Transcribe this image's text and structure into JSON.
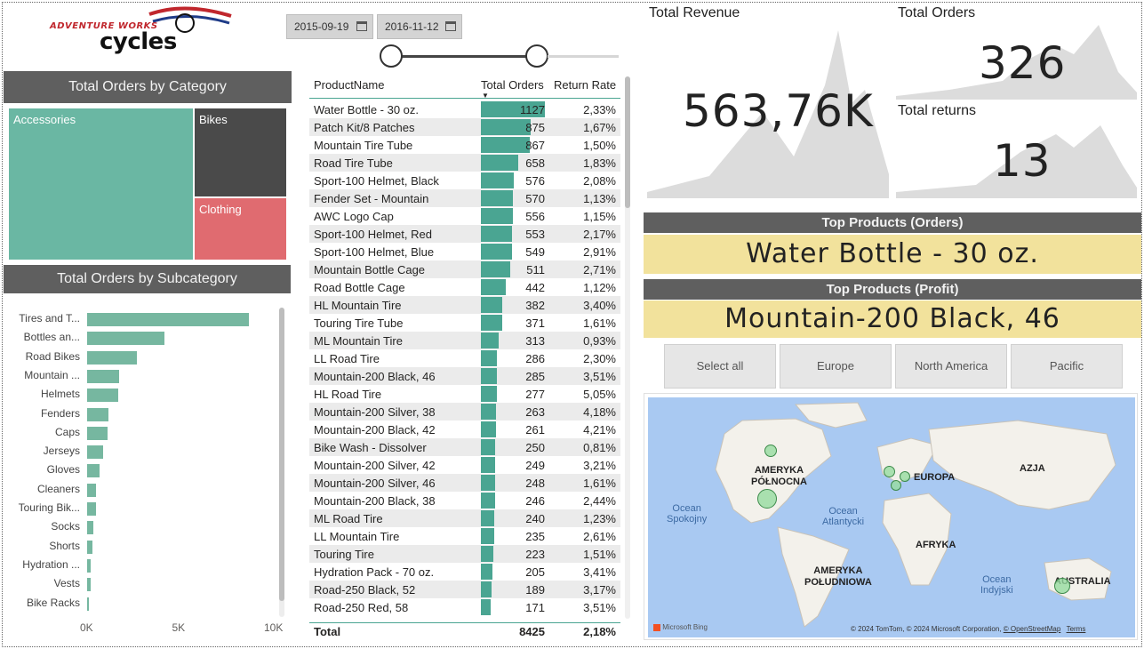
{
  "logo": {
    "brand": "ADVENTURE WORKS",
    "name": "cycles"
  },
  "date_range": {
    "start": "2015-09-19",
    "end": "2016-11-12",
    "start_icon": "calendar-icon",
    "end_icon": "calendar-icon"
  },
  "category": {
    "title": "Total Orders by Category",
    "items": [
      {
        "label": "Accessories",
        "color": "#6ab7a3"
      },
      {
        "label": "Bikes",
        "color": "#4a4a4a"
      },
      {
        "label": "Clothing",
        "color": "#e06b70"
      }
    ]
  },
  "subcategory": {
    "title": "Total Orders by Subcategory",
    "bar_color": "#76b7a0",
    "chart_data": {
      "type": "bar",
      "orientation": "horizontal",
      "categories": [
        "Tires and T...",
        "Bottles an...",
        "Road Bikes",
        "Mountain ...",
        "Helmets",
        "Fenders",
        "Caps",
        "Jerseys",
        "Gloves",
        "Cleaners",
        "Touring Bik...",
        "Socks",
        "Shorts",
        "Hydration ...",
        "Vests",
        "Bike Racks"
      ],
      "values": [
        8800,
        4200,
        2700,
        1750,
        1680,
        1150,
        1100,
        850,
        690,
        480,
        470,
        330,
        300,
        205,
        175,
        95
      ],
      "xlim": [
        0,
        10000
      ],
      "xticks": [
        "0K",
        "5K",
        "10K"
      ]
    }
  },
  "table": {
    "headers": {
      "product": "ProductName",
      "orders": "Total Orders",
      "return": "Return Rate"
    },
    "max_orders": 1127,
    "rows": [
      {
        "name": "Water Bottle - 30 oz.",
        "orders": "1127",
        "v": 1127,
        "rate": "2,33%"
      },
      {
        "name": "Patch Kit/8 Patches",
        "orders": "875",
        "v": 875,
        "rate": "1,67%"
      },
      {
        "name": "Mountain Tire Tube",
        "orders": "867",
        "v": 867,
        "rate": "1,50%"
      },
      {
        "name": "Road Tire Tube",
        "orders": "658",
        "v": 658,
        "rate": "1,83%"
      },
      {
        "name": "Sport-100 Helmet, Black",
        "orders": "576",
        "v": 576,
        "rate": "2,08%"
      },
      {
        "name": "Fender Set - Mountain",
        "orders": "570",
        "v": 570,
        "rate": "1,13%"
      },
      {
        "name": "AWC Logo Cap",
        "orders": "556",
        "v": 556,
        "rate": "1,15%"
      },
      {
        "name": "Sport-100 Helmet, Red",
        "orders": "553",
        "v": 553,
        "rate": "2,17%"
      },
      {
        "name": "Sport-100 Helmet, Blue",
        "orders": "549",
        "v": 549,
        "rate": "2,91%"
      },
      {
        "name": "Mountain Bottle Cage",
        "orders": "511",
        "v": 511,
        "rate": "2,71%"
      },
      {
        "name": "Road Bottle Cage",
        "orders": "442",
        "v": 442,
        "rate": "1,12%"
      },
      {
        "name": "HL Mountain Tire",
        "orders": "382",
        "v": 382,
        "rate": "3,40%"
      },
      {
        "name": "Touring Tire Tube",
        "orders": "371",
        "v": 371,
        "rate": "1,61%"
      },
      {
        "name": "ML Mountain Tire",
        "orders": "313",
        "v": 313,
        "rate": "0,93%"
      },
      {
        "name": "LL Road Tire",
        "orders": "286",
        "v": 286,
        "rate": "2,30%"
      },
      {
        "name": "Mountain-200 Black, 46",
        "orders": "285",
        "v": 285,
        "rate": "3,51%"
      },
      {
        "name": "HL Road Tire",
        "orders": "277",
        "v": 277,
        "rate": "5,05%"
      },
      {
        "name": "Mountain-200 Silver, 38",
        "orders": "263",
        "v": 263,
        "rate": "4,18%"
      },
      {
        "name": "Mountain-200 Black, 42",
        "orders": "261",
        "v": 261,
        "rate": "4,21%"
      },
      {
        "name": "Bike Wash - Dissolver",
        "orders": "250",
        "v": 250,
        "rate": "0,81%"
      },
      {
        "name": "Mountain-200 Silver, 42",
        "orders": "249",
        "v": 249,
        "rate": "3,21%"
      },
      {
        "name": "Mountain-200 Silver, 46",
        "orders": "248",
        "v": 248,
        "rate": "1,61%"
      },
      {
        "name": "Mountain-200 Black, 38",
        "orders": "246",
        "v": 246,
        "rate": "2,44%"
      },
      {
        "name": "ML Road Tire",
        "orders": "240",
        "v": 240,
        "rate": "1,23%"
      },
      {
        "name": "LL Mountain Tire",
        "orders": "235",
        "v": 235,
        "rate": "2,61%"
      },
      {
        "name": "Touring Tire",
        "orders": "223",
        "v": 223,
        "rate": "1,51%"
      },
      {
        "name": "Hydration Pack - 70 oz.",
        "orders": "205",
        "v": 205,
        "rate": "3,41%"
      },
      {
        "name": "Road-250 Black, 52",
        "orders": "189",
        "v": 189,
        "rate": "3,17%"
      },
      {
        "name": "Road-250 Red, 58",
        "orders": "171",
        "v": 171,
        "rate": "3,51%"
      }
    ],
    "total": {
      "label": "Total",
      "orders": "8425",
      "rate": "2,18%"
    }
  },
  "kpi": {
    "revenue": {
      "title": "Total Revenue",
      "value": "563,76K"
    },
    "orders": {
      "title": "Total Orders",
      "value": "326"
    },
    "returns": {
      "title": "Total returns",
      "value": "13"
    }
  },
  "top_products": {
    "orders": {
      "title": "Top Products (Orders)",
      "value": "Water Bottle - 30 oz."
    },
    "profit": {
      "title": "Top Products (Profit)",
      "value": "Mountain-200 Black, 46"
    }
  },
  "regions": [
    "Select all",
    "Europe",
    "North America",
    "Pacific"
  ],
  "map": {
    "continents": [
      "AMERYKA\nPÓŁNOCNA",
      "EUROPA",
      "AZJA",
      "AFRYKA",
      "AMERYKA\nPOŁUDNIOWA",
      "AUSTRALIA"
    ],
    "oceans": [
      "Ocean\nSpokojny",
      "Ocean\nAtlantycki",
      "Ocean\nIndyjski"
    ],
    "attribution": "© 2024 TomTom, © 2024 Microsoft Corporation,",
    "osm": "© OpenStreetMap",
    "terms": "Terms",
    "bing": "Microsoft Bing"
  }
}
